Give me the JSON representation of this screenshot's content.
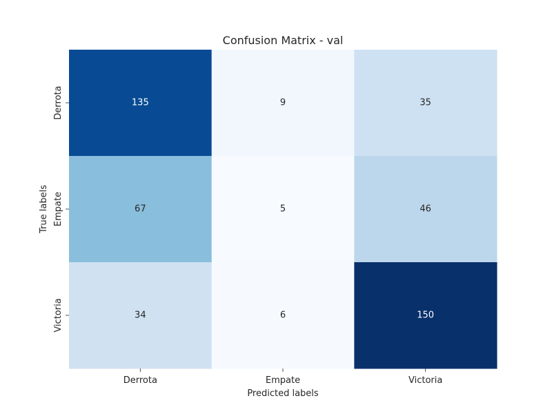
{
  "chart_data": {
    "type": "heatmap",
    "title": "Confusion Matrix - val",
    "xlabel": "Predicted labels",
    "ylabel": "True labels",
    "x_categories": [
      "Derrota",
      "Empate",
      "Victoria"
    ],
    "y_categories": [
      "Derrota",
      "Empate",
      "Victoria"
    ],
    "values": [
      [
        135,
        9,
        35
      ],
      [
        67,
        5,
        46
      ],
      [
        34,
        6,
        150
      ]
    ],
    "colormap": "Blues",
    "color_range": [
      5,
      150
    ],
    "colorbar": false,
    "annotations": true
  }
}
